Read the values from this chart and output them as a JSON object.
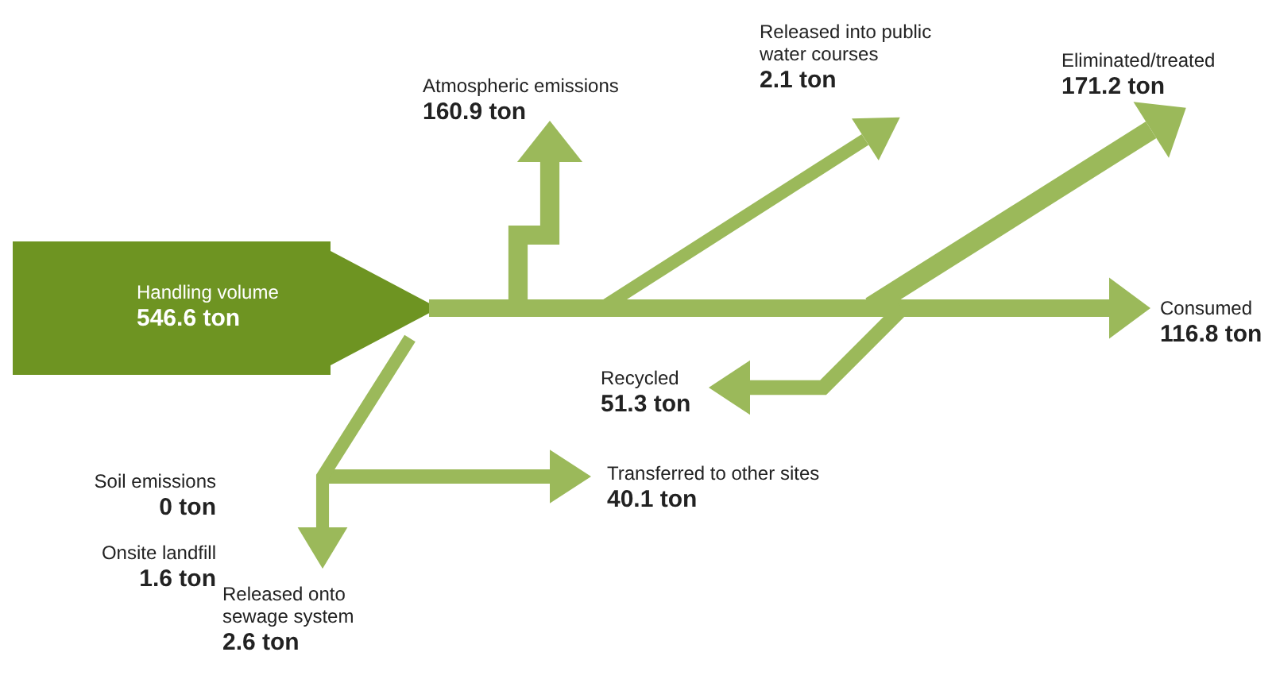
{
  "chart_data": {
    "type": "other",
    "categories": [
      "Handling volume",
      "Atmospheric emissions",
      "Released into public water courses",
      "Eliminated/treated",
      "Consumed",
      "Recycled",
      "Transferred to other sites",
      "Soil emissions",
      "Onsite landfill",
      "Released onto sewage system"
    ],
    "values": [
      546.6,
      160.9,
      2.1,
      171.2,
      116.8,
      51.3,
      40.1,
      0,
      1.6,
      2.6
    ],
    "value_labels": [
      "546.6 ton",
      "160.9 ton",
      "2.1 ton",
      "171.2 ton",
      "116.8 ton",
      "51.3 ton",
      "40.1 ton",
      "0 ton",
      "1.6 ton",
      "2.6 ton"
    ],
    "colors": [
      "#6e9422",
      "#9bb95a",
      "#9bb95a",
      "#9bb95a",
      "#9bb95a",
      "#9bb95a",
      "#9bb95a",
      "#9bb95a",
      "#9bb95a",
      "#9bb95a"
    ]
  }
}
